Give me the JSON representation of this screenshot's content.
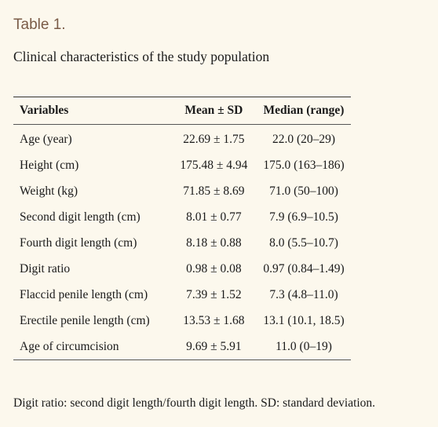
{
  "table_label": "Table 1.",
  "caption": "Clinical characteristics of the study population",
  "table": {
    "headers": [
      "Variables",
      "Mean ± SD",
      "Median (range)"
    ],
    "rows": [
      [
        "Age (year)",
        "22.69 ± 1.75",
        "22.0 (20–29)"
      ],
      [
        "Height (cm)",
        "175.48 ± 4.94",
        "175.0 (163–186)"
      ],
      [
        "Weight (kg)",
        "71.85 ± 8.69",
        "71.0 (50–100)"
      ],
      [
        "Second digit length (cm)",
        "8.01 ± 0.77",
        "7.9 (6.9–10.5)"
      ],
      [
        "Fourth digit length (cm)",
        "8.18 ± 0.88",
        "8.0 (5.5–10.7)"
      ],
      [
        "Digit ratio",
        "0.98 ± 0.08",
        "0.97 (0.84–1.49)"
      ],
      [
        "Flaccid penile length (cm)",
        "7.39 ± 1.52",
        "7.3 (4.8–11.0)"
      ],
      [
        "Erectile penile length (cm)",
        "13.53 ± 1.68",
        "13.1 (10.1, 18.5)"
      ],
      [
        "Age of circumcision",
        "9.69 ± 5.91",
        "11.0 (0–19)"
      ]
    ]
  },
  "footnote": "Digit ratio: second digit length/fourth digit length. SD: standard deviation."
}
